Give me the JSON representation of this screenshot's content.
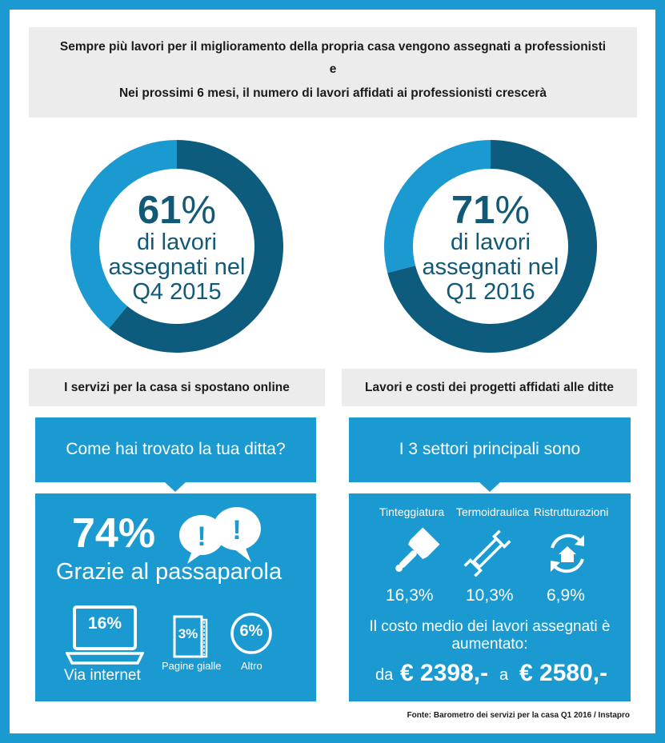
{
  "header": {
    "line1": "Sempre più lavori per il miglioramento della propria casa vengono assegnati a professionisti",
    "line2": "e",
    "line3": "Nei prossimi 6 mesi, il numero di lavori affidati ai professionisti crescerà"
  },
  "donuts": [
    {
      "value": 61,
      "big": "61",
      "pct": "%",
      "line1": "di lavori",
      "line2": "assegnati nel",
      "line3": "Q4 2015"
    },
    {
      "value": 71,
      "big": "71",
      "pct": "%",
      "line1": "di lavori",
      "line2": "assegnati nel",
      "line3": "Q1 2016"
    }
  ],
  "colors": {
    "dark_blue": "#0d5b7d",
    "light_blue": "#1a9ad1",
    "grey": "#ececec"
  },
  "left_section": {
    "bar_title": "I servizi per la casa si spostano online",
    "question": "Come hai trovato la tua ditta?",
    "main_pct": "74%",
    "main_label": "Grazie al passaparola",
    "items": [
      {
        "icon": "laptop-icon",
        "value": "16%",
        "label": "Via internet"
      },
      {
        "icon": "yellow-pages-icon",
        "value": "3%",
        "label": "Pagine gialle"
      },
      {
        "icon": "circle-icon",
        "value": "6%",
        "label": "Altro"
      }
    ]
  },
  "right_section": {
    "bar_title": "Lavori e costi dei progetti affidati alle ditte",
    "question": "I 3 settori principali sono",
    "sectors": [
      {
        "icon": "paint-brush-icon",
        "name": "Tinteggiatura",
        "value": "16,3%"
      },
      {
        "icon": "wrench-icon",
        "name": "Termoidraulica",
        "value": "10,3%"
      },
      {
        "icon": "house-refresh-icon",
        "name": "Ristrutturazioni",
        "value": "6,9%"
      }
    ],
    "cost_line1": "Il costo medio dei lavori assegnati è",
    "cost_line2": "aumentato:",
    "from_word": "da",
    "from_value": "€ 2398,-",
    "to_word": "a",
    "to_value": "€ 2580,-"
  },
  "footer": "Fonte: Barometro dei servizi per la casa Q1 2016 / Instapro"
}
